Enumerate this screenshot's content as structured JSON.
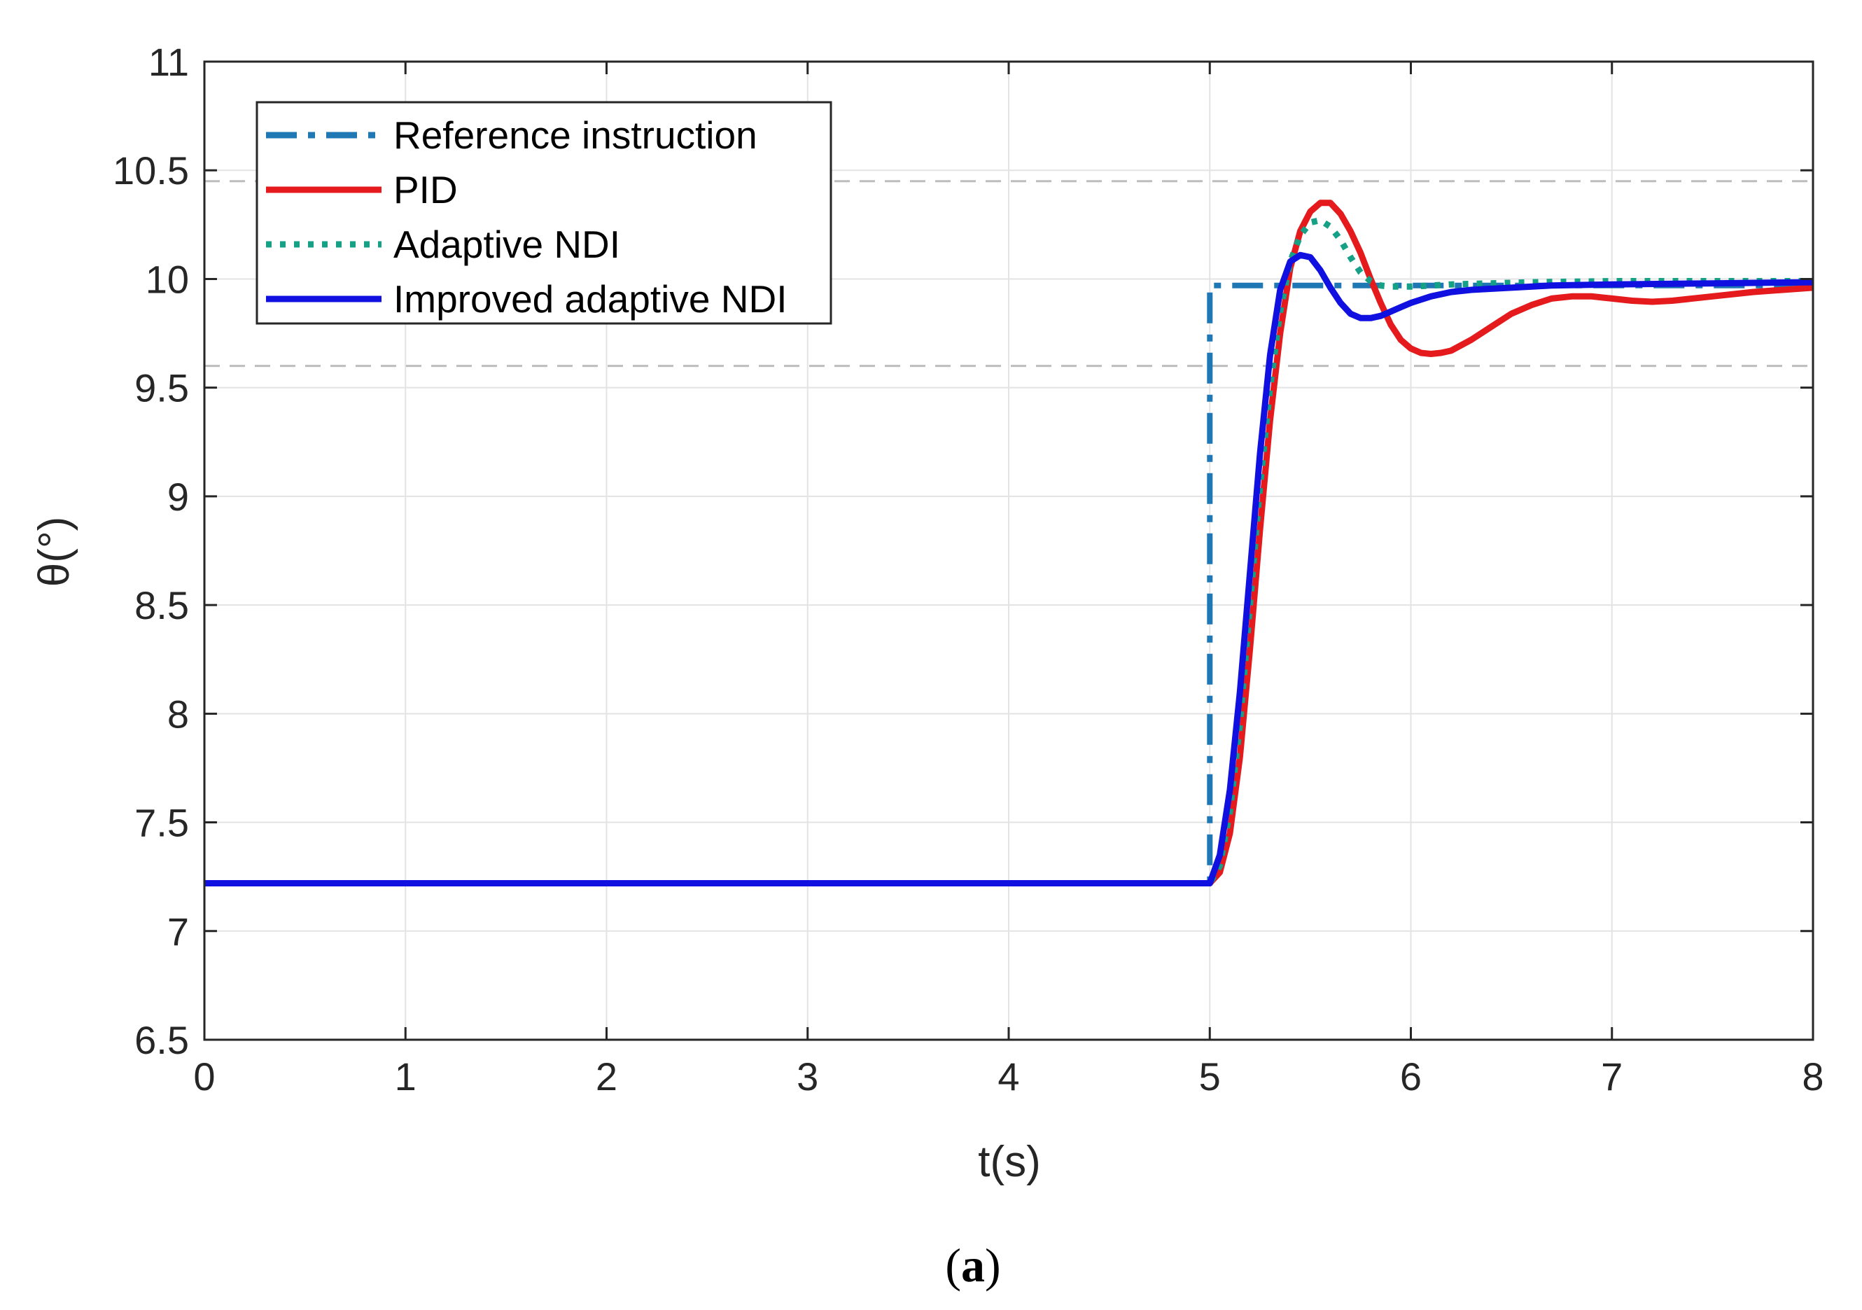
{
  "chart_data": {
    "type": "line",
    "xlabel": "t(s)",
    "ylabel": "θ(°)",
    "xlim": [
      0,
      8
    ],
    "ylim": [
      6.5,
      11
    ],
    "xticks": [
      0,
      1,
      2,
      3,
      4,
      5,
      6,
      7,
      8
    ],
    "yticks": [
      6.5,
      7,
      7.5,
      8,
      8.5,
      9,
      9.5,
      10,
      10.5,
      11
    ],
    "grid": true,
    "legend_position": "top-left",
    "bands": [
      {
        "y": 10.45,
        "color": "#bdbdbd",
        "style": "dashed"
      },
      {
        "y": 9.6,
        "color": "#bdbdbd",
        "style": "dashed"
      }
    ],
    "series": [
      {
        "name": "Reference instruction",
        "color": "#1f77b4",
        "style": "dashdot",
        "x": [
          0,
          5,
          5,
          8
        ],
        "y": [
          7.22,
          7.22,
          9.97,
          9.97
        ]
      },
      {
        "name": "PID",
        "color": "#e41a1c",
        "style": "solid",
        "x": [
          0,
          5.0,
          5.05,
          5.1,
          5.15,
          5.2,
          5.25,
          5.3,
          5.35,
          5.4,
          5.45,
          5.5,
          5.55,
          5.6,
          5.65,
          5.7,
          5.75,
          5.8,
          5.85,
          5.9,
          5.95,
          6.0,
          6.05,
          6.1,
          6.15,
          6.2,
          6.3,
          6.4,
          6.5,
          6.6,
          6.7,
          6.8,
          6.9,
          7.0,
          7.1,
          7.2,
          7.3,
          7.5,
          7.7,
          8.0
        ],
        "y": [
          7.22,
          7.22,
          7.27,
          7.45,
          7.8,
          8.3,
          8.85,
          9.35,
          9.75,
          10.05,
          10.22,
          10.31,
          10.35,
          10.35,
          10.3,
          10.22,
          10.12,
          10.0,
          9.89,
          9.79,
          9.72,
          9.68,
          9.66,
          9.655,
          9.66,
          9.67,
          9.72,
          9.78,
          9.84,
          9.88,
          9.91,
          9.92,
          9.92,
          9.91,
          9.9,
          9.895,
          9.9,
          9.92,
          9.94,
          9.96
        ]
      },
      {
        "name": "Adaptive NDI",
        "color": "#16a085",
        "style": "dotted",
        "x": [
          0,
          5.0,
          5.05,
          5.1,
          5.15,
          5.2,
          5.25,
          5.3,
          5.35,
          5.4,
          5.45,
          5.5,
          5.55,
          5.6,
          5.65,
          5.7,
          5.75,
          5.8,
          5.85,
          5.9,
          6.0,
          6.1,
          6.2,
          6.4,
          6.6,
          7.0,
          7.5,
          8.0
        ],
        "y": [
          7.22,
          7.22,
          7.3,
          7.55,
          7.95,
          8.5,
          9.05,
          9.5,
          9.85,
          10.08,
          10.2,
          10.26,
          10.27,
          10.24,
          10.18,
          10.1,
          10.03,
          9.99,
          9.97,
          9.965,
          9.965,
          9.97,
          9.975,
          9.98,
          9.985,
          9.99,
          9.99,
          9.99
        ]
      },
      {
        "name": "Improved adaptive NDI",
        "color": "#1010e0",
        "style": "solid",
        "x": [
          0,
          5.0,
          5.05,
          5.1,
          5.15,
          5.2,
          5.25,
          5.3,
          5.35,
          5.4,
          5.45,
          5.5,
          5.55,
          5.6,
          5.65,
          5.7,
          5.75,
          5.8,
          5.85,
          5.9,
          5.95,
          6.0,
          6.1,
          6.2,
          6.3,
          6.5,
          6.7,
          7.0,
          7.5,
          8.0
        ],
        "y": [
          7.22,
          7.22,
          7.35,
          7.65,
          8.1,
          8.65,
          9.2,
          9.65,
          9.95,
          10.08,
          10.11,
          10.1,
          10.04,
          9.96,
          9.89,
          9.84,
          9.82,
          9.82,
          9.83,
          9.85,
          9.87,
          9.89,
          9.92,
          9.94,
          9.95,
          9.96,
          9.97,
          9.975,
          9.98,
          9.985
        ]
      }
    ]
  },
  "caption": {
    "open": "(",
    "letter": "a",
    "close": ")"
  }
}
